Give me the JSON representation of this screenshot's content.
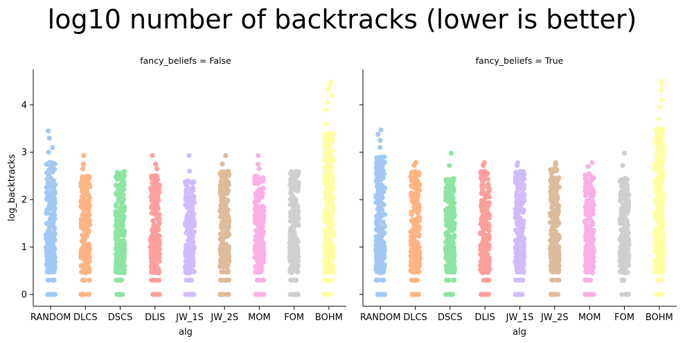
{
  "suptitle": "log10 number of backtracks (lower is better)",
  "chart_data": [
    {
      "type": "scatter",
      "variant": "strip",
      "title": "fancy_beliefs = False",
      "xlabel": "alg",
      "ylabel": "log_backtracks",
      "categories": [
        "RANDOM",
        "DLCS",
        "DSCS",
        "DLIS",
        "JW_1S",
        "JW_2S",
        "MOM",
        "FOM",
        "BOHM"
      ],
      "colors": [
        "#a1c9f4",
        "#ffb482",
        "#8de5a1",
        "#ff9f9b",
        "#d0bbff",
        "#debb9b",
        "#fab0e4",
        "#cfcfcf",
        "#fffea3"
      ],
      "yticks": [
        0,
        1,
        2,
        3,
        4
      ],
      "ylim": [
        -0.25,
        4.75
      ],
      "series": [
        {
          "category": "RANDOM",
          "min": 0,
          "max": 3.45,
          "dense_max": 2.8,
          "outliers": [
            3.0,
            3.1,
            3.3,
            3.45
          ]
        },
        {
          "category": "DLCS",
          "min": 0,
          "max": 2.93,
          "dense_max": 2.5,
          "outliers": [
            2.65,
            2.75,
            2.93
          ]
        },
        {
          "category": "DSCS",
          "min": 0,
          "max": 2.6,
          "dense_max": 2.6,
          "outliers": []
        },
        {
          "category": "DLIS",
          "min": 0,
          "max": 2.93,
          "dense_max": 2.5,
          "outliers": [
            2.65,
            2.75,
            2.93
          ]
        },
        {
          "category": "JW_1S",
          "min": 0,
          "max": 2.93,
          "dense_max": 2.4,
          "outliers": [
            2.6,
            2.93
          ]
        },
        {
          "category": "JW_2S",
          "min": 0,
          "max": 2.93,
          "dense_max": 2.6,
          "outliers": [
            2.75,
            2.93
          ]
        },
        {
          "category": "MOM",
          "min": 0,
          "max": 2.93,
          "dense_max": 2.5,
          "outliers": [
            2.65,
            2.75,
            2.93
          ]
        },
        {
          "category": "FOM",
          "min": 0,
          "max": 2.6,
          "dense_max": 2.6,
          "outliers": []
        },
        {
          "category": "BOHM",
          "min": 0,
          "max": 4.48,
          "dense_max": 3.4,
          "outliers": [
            3.6,
            3.9,
            4.05,
            4.2,
            4.32,
            4.42,
            4.48
          ]
        }
      ]
    },
    {
      "type": "scatter",
      "variant": "strip",
      "title": "fancy_beliefs = True",
      "xlabel": "alg",
      "ylabel": "log_backtracks",
      "categories": [
        "RANDOM",
        "DLCS",
        "DSCS",
        "DLIS",
        "JW_1S",
        "JW_2S",
        "MOM",
        "FOM",
        "BOHM"
      ],
      "colors": [
        "#a1c9f4",
        "#ffb482",
        "#8de5a1",
        "#ff9f9b",
        "#d0bbff",
        "#debb9b",
        "#fab0e4",
        "#cfcfcf",
        "#fffea3"
      ],
      "yticks": [
        0,
        1,
        2,
        3,
        4
      ],
      "ylim": [
        -0.25,
        4.75
      ],
      "series": [
        {
          "category": "RANDOM",
          "min": 0,
          "max": 3.47,
          "dense_max": 2.9,
          "outliers": [
            3.1,
            3.25,
            3.38,
            3.47
          ]
        },
        {
          "category": "DLCS",
          "min": 0,
          "max": 2.78,
          "dense_max": 2.6,
          "outliers": [
            2.72,
            2.78
          ]
        },
        {
          "category": "DSCS",
          "min": 0,
          "max": 2.98,
          "dense_max": 2.45,
          "outliers": [
            2.72,
            2.98
          ]
        },
        {
          "category": "DLIS",
          "min": 0,
          "max": 2.78,
          "dense_max": 2.6,
          "outliers": [
            2.72,
            2.78
          ]
        },
        {
          "category": "JW_1S",
          "min": 0,
          "max": 2.78,
          "dense_max": 2.6,
          "outliers": [
            2.72,
            2.78
          ]
        },
        {
          "category": "JW_2S",
          "min": 0,
          "max": 2.78,
          "dense_max": 2.65,
          "outliers": [
            2.72,
            2.78
          ]
        },
        {
          "category": "MOM",
          "min": 0,
          "max": 2.78,
          "dense_max": 2.55,
          "outliers": [
            2.7,
            2.78
          ]
        },
        {
          "category": "FOM",
          "min": 0,
          "max": 2.98,
          "dense_max": 2.45,
          "outliers": [
            2.72,
            2.98
          ]
        },
        {
          "category": "BOHM",
          "min": 0,
          "max": 4.5,
          "dense_max": 3.5,
          "outliers": [
            3.7,
            3.95,
            4.1,
            4.3,
            4.42,
            4.5
          ]
        }
      ]
    }
  ]
}
